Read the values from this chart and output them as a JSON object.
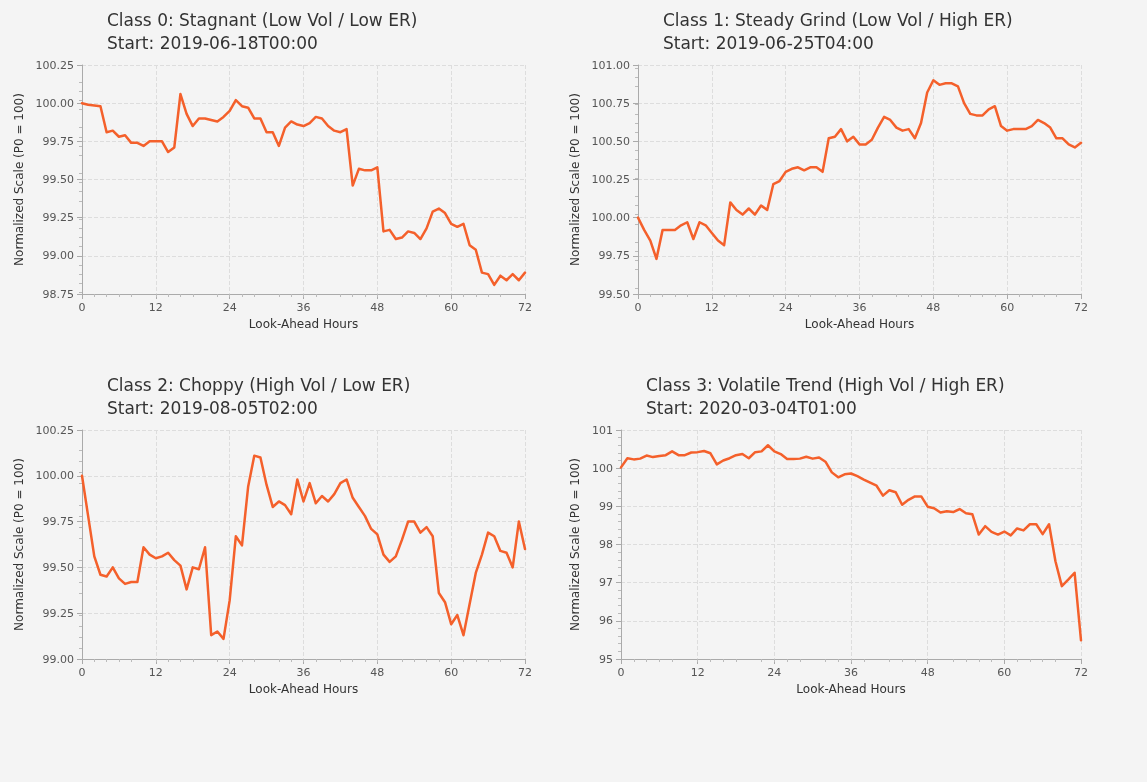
{
  "chart_data": [
    {
      "type": "line",
      "title": "Class 0: Stagnant (Low Vol / Low ER)",
      "subtitle": "Start: 2019-06-18T00:00",
      "xlabel": "Look-Ahead Hours",
      "ylabel": "Normalized Scale (P0 = 100)",
      "grid": true,
      "marker": "none",
      "line_style": "solid",
      "xlim": [
        0,
        72
      ],
      "xticks": [
        0,
        12,
        24,
        36,
        48,
        60,
        72
      ],
      "ylim": [
        98.75,
        100.25
      ],
      "yticks": [
        {
          "value": 98.75,
          "label": "98.75"
        },
        {
          "value": 99,
          "label": "99.00"
        },
        {
          "value": 99.25,
          "label": "99.25"
        },
        {
          "value": 99.5,
          "label": "99.50"
        },
        {
          "value": 99.75,
          "label": "99.75"
        },
        {
          "value": 100,
          "label": "100.00"
        },
        {
          "value": 100.25,
          "label": "100.25"
        }
      ],
      "x": [
        0,
        1,
        2,
        3,
        4,
        5,
        6,
        7,
        8,
        9,
        10,
        11,
        12,
        13,
        14,
        15,
        16,
        17,
        18,
        19,
        20,
        21,
        22,
        23,
        24,
        25,
        26,
        27,
        28,
        29,
        30,
        31,
        32,
        33,
        34,
        35,
        36,
        37,
        38,
        39,
        40,
        41,
        42,
        43,
        44,
        45,
        46,
        47,
        48,
        49,
        50,
        51,
        52,
        53,
        54,
        55,
        56,
        57,
        58,
        59,
        60,
        61,
        62,
        63,
        64,
        65,
        66,
        67,
        68,
        69,
        70,
        71,
        72
      ],
      "series": [
        {
          "color": "#f4602b",
          "values": [
            100.0,
            99.99,
            99.985,
            99.98,
            99.81,
            99.82,
            99.78,
            99.79,
            99.74,
            99.74,
            99.72,
            99.75,
            99.75,
            99.75,
            99.68,
            99.71,
            100.06,
            99.93,
            99.85,
            99.9,
            99.9,
            99.89,
            99.88,
            99.91,
            99.95,
            100.02,
            99.98,
            99.97,
            99.9,
            99.9,
            99.81,
            99.81,
            99.72,
            99.84,
            99.88,
            99.86,
            99.85,
            99.87,
            99.91,
            99.9,
            99.85,
            99.82,
            99.81,
            99.83,
            99.46,
            99.57,
            99.56,
            99.56,
            99.58,
            99.16,
            99.17,
            99.11,
            99.12,
            99.16,
            99.15,
            99.11,
            99.18,
            99.29,
            99.31,
            99.28,
            99.21,
            99.19,
            99.21,
            99.07,
            99.04,
            98.89,
            98.88,
            98.81,
            98.87,
            98.84,
            98.88,
            98.84,
            98.89
          ]
        }
      ]
    },
    {
      "type": "line",
      "title": "Class 1: Steady Grind (Low Vol / High ER)",
      "subtitle": "Start: 2019-06-25T04:00",
      "xlabel": "Look-Ahead Hours",
      "ylabel": "Normalized Scale (P0 = 100)",
      "grid": true,
      "marker": "none",
      "line_style": "solid",
      "xlim": [
        0,
        72
      ],
      "xticks": [
        0,
        12,
        24,
        36,
        48,
        60,
        72
      ],
      "ylim": [
        99.5,
        101
      ],
      "yticks": [
        {
          "value": 99.5,
          "label": "99.50"
        },
        {
          "value": 99.75,
          "label": "99.75"
        },
        {
          "value": 100,
          "label": "100.00"
        },
        {
          "value": 100.25,
          "label": "100.25"
        },
        {
          "value": 100.5,
          "label": "100.50"
        },
        {
          "value": 100.75,
          "label": "100.75"
        },
        {
          "value": 101,
          "label": "101.00"
        }
      ],
      "x": [
        0,
        1,
        2,
        3,
        4,
        5,
        6,
        7,
        8,
        9,
        10,
        11,
        12,
        13,
        14,
        15,
        16,
        17,
        18,
        19,
        20,
        21,
        22,
        23,
        24,
        25,
        26,
        27,
        28,
        29,
        30,
        31,
        32,
        33,
        34,
        35,
        36,
        37,
        38,
        39,
        40,
        41,
        42,
        43,
        44,
        45,
        46,
        47,
        48,
        49,
        50,
        51,
        52,
        53,
        54,
        55,
        56,
        57,
        58,
        59,
        60,
        61,
        62,
        63,
        64,
        65,
        66,
        67,
        68,
        69,
        70,
        71,
        72
      ],
      "series": [
        {
          "color": "#f4602b",
          "values": [
            100.0,
            99.92,
            99.85,
            99.73,
            99.92,
            99.92,
            99.92,
            99.95,
            99.97,
            99.86,
            99.97,
            99.95,
            99.9,
            99.85,
            99.82,
            100.1,
            100.05,
            100.02,
            100.06,
            100.02,
            100.08,
            100.05,
            100.22,
            100.24,
            100.3,
            100.32,
            100.33,
            100.31,
            100.33,
            100.33,
            100.3,
            100.52,
            100.53,
            100.58,
            100.5,
            100.53,
            100.48,
            100.48,
            100.51,
            100.59,
            100.66,
            100.64,
            100.59,
            100.57,
            100.58,
            100.52,
            100.62,
            100.82,
            100.9,
            100.87,
            100.88,
            100.88,
            100.86,
            100.75,
            100.68,
            100.67,
            100.67,
            100.71,
            100.73,
            100.6,
            100.57,
            100.58,
            100.58,
            100.58,
            100.6,
            100.64,
            100.62,
            100.59,
            100.52,
            100.52,
            100.48,
            100.46,
            100.49
          ]
        }
      ]
    },
    {
      "type": "line",
      "title": "Class 2: Choppy (High Vol / Low ER)",
      "subtitle": "Start: 2019-08-05T02:00",
      "xlabel": "Look-Ahead Hours",
      "ylabel": "Normalized Scale (P0 = 100)",
      "grid": true,
      "marker": "none",
      "line_style": "solid",
      "xlim": [
        0,
        72
      ],
      "xticks": [
        0,
        12,
        24,
        36,
        48,
        60,
        72
      ],
      "ylim": [
        99,
        100.25
      ],
      "yticks": [
        {
          "value": 99,
          "label": "99.00"
        },
        {
          "value": 99.25,
          "label": "99.25"
        },
        {
          "value": 99.5,
          "label": "99.50"
        },
        {
          "value": 99.75,
          "label": "99.75"
        },
        {
          "value": 100,
          "label": "100.00"
        },
        {
          "value": 100.25,
          "label": "100.25"
        }
      ],
      "x": [
        0,
        1,
        2,
        3,
        4,
        5,
        6,
        7,
        8,
        9,
        10,
        11,
        12,
        13,
        14,
        15,
        16,
        17,
        18,
        19,
        20,
        21,
        22,
        23,
        24,
        25,
        26,
        27,
        28,
        29,
        30,
        31,
        32,
        33,
        34,
        35,
        36,
        37,
        38,
        39,
        40,
        41,
        42,
        43,
        44,
        45,
        46,
        47,
        48,
        49,
        50,
        51,
        52,
        53,
        54,
        55,
        56,
        57,
        58,
        59,
        60,
        61,
        62,
        63,
        64,
        65,
        66,
        67,
        68,
        69,
        70,
        71,
        72
      ],
      "series": [
        {
          "color": "#f4602b",
          "values": [
            100.0,
            99.78,
            99.56,
            99.46,
            99.45,
            99.5,
            99.44,
            99.41,
            99.42,
            99.42,
            99.61,
            99.57,
            99.55,
            99.56,
            99.58,
            99.54,
            99.51,
            99.38,
            99.5,
            99.49,
            99.61,
            99.13,
            99.15,
            99.11,
            99.32,
            99.67,
            99.62,
            99.94,
            100.11,
            100.1,
            99.95,
            99.83,
            99.86,
            99.84,
            99.79,
            99.98,
            99.86,
            99.96,
            99.85,
            99.89,
            99.86,
            99.9,
            99.96,
            99.98,
            99.88,
            99.83,
            99.78,
            99.71,
            99.68,
            99.57,
            99.53,
            99.56,
            99.65,
            99.75,
            99.75,
            99.69,
            99.72,
            99.67,
            99.36,
            99.31,
            99.19,
            99.24,
            99.13,
            99.3,
            99.47,
            99.57,
            99.69,
            99.67,
            99.59,
            99.58,
            99.5,
            99.75,
            99.6
          ]
        }
      ]
    },
    {
      "type": "line",
      "title": "Class 3: Volatile Trend (High Vol / High ER)",
      "subtitle": "Start: 2020-03-04T01:00",
      "xlabel": "Look-Ahead Hours",
      "ylabel": "Normalized Scale (P0 = 100)",
      "grid": true,
      "marker": "none",
      "line_style": "solid",
      "xlim": [
        0,
        72
      ],
      "xticks": [
        0,
        12,
        24,
        36,
        48,
        60,
        72
      ],
      "ylim": [
        95,
        101
      ],
      "yticks": [
        95,
        96,
        97,
        98,
        99,
        100,
        101
      ],
      "x": [
        0,
        1,
        2,
        3,
        4,
        5,
        6,
        7,
        8,
        9,
        10,
        11,
        12,
        13,
        14,
        15,
        16,
        17,
        18,
        19,
        20,
        21,
        22,
        23,
        24,
        25,
        26,
        27,
        28,
        29,
        30,
        31,
        32,
        33,
        34,
        35,
        36,
        37,
        38,
        39,
        40,
        41,
        42,
        43,
        44,
        45,
        46,
        47,
        48,
        49,
        50,
        51,
        52,
        53,
        54,
        55,
        56,
        57,
        58,
        59,
        60,
        61,
        62,
        63,
        64,
        65,
        66,
        67,
        68,
        69,
        70,
        71,
        72
      ],
      "series": [
        {
          "color": "#f4602b",
          "values": [
            100.02,
            100.26,
            100.23,
            100.25,
            100.33,
            100.29,
            100.32,
            100.34,
            100.44,
            100.34,
            100.34,
            100.41,
            100.42,
            100.45,
            100.39,
            100.1,
            100.2,
            100.26,
            100.34,
            100.37,
            100.26,
            100.42,
            100.44,
            100.6,
            100.44,
            100.37,
            100.24,
            100.24,
            100.25,
            100.3,
            100.25,
            100.28,
            100.17,
            99.89,
            99.76,
            99.84,
            99.86,
            99.79,
            99.7,
            99.62,
            99.54,
            99.28,
            99.42,
            99.37,
            99.04,
            99.17,
            99.26,
            99.26,
            98.99,
            98.95,
            98.84,
            98.87,
            98.85,
            98.93,
            98.82,
            98.79,
            98.26,
            98.48,
            98.33,
            98.26,
            98.34,
            98.24,
            98.42,
            98.37,
            98.53,
            98.53,
            98.27,
            98.53,
            97.56,
            96.91,
            97.08,
            97.26,
            95.49
          ]
        }
      ]
    }
  ]
}
